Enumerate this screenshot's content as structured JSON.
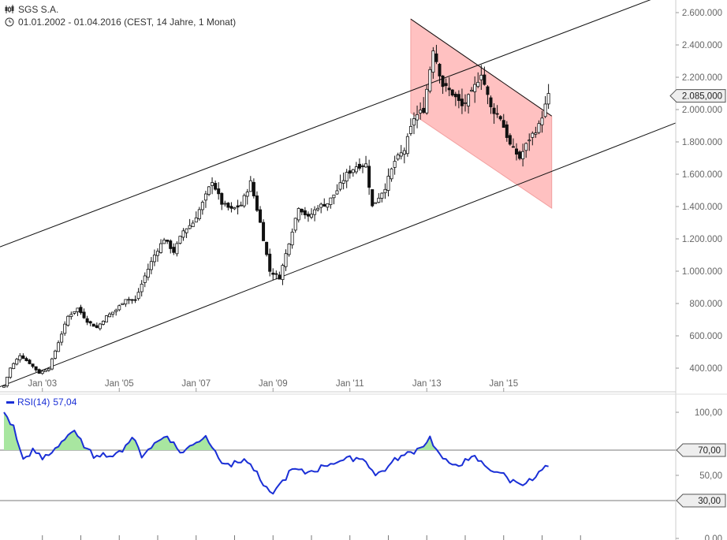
{
  "header": {
    "title": "SGS S.A.",
    "range": "01.01.2002 - 01.04.2016 (CEST, 14 Jahre, 1 Monat)",
    "chart_icon": "candlestick-icon",
    "clock_icon": "clock-icon"
  },
  "rsi_legend": {
    "label": "RSI(14)",
    "value": "57,04"
  },
  "colors": {
    "candle": "#111111",
    "channel_line": "#111111",
    "channel_fill": "#ffb6b6",
    "channel_edge": "#f2a0a0",
    "rsi_line": "#1a2fd6",
    "rsi_fill": "#a8e6a0",
    "guide": "#7a7a7a",
    "axis_text": "#666666"
  },
  "chart_data": [
    {
      "type": "candlestick",
      "title": "SGS S.A.",
      "interval": "1 Monat",
      "x_range": [
        "2002-01",
        "2016-03"
      ],
      "ylim": [
        250000,
        2650000
      ],
      "x_tick_labels": [
        "Jan '03",
        "Jan '05",
        "Jan '07",
        "Jan '09",
        "Jan '11",
        "Jan '13",
        "Jan '15"
      ],
      "y_tick_labels": [
        "400.000",
        "600.000",
        "800.000",
        "1.000.000",
        "1.200.000",
        "1.400.000",
        "1.600.000",
        "1.800.000",
        "2.000.000",
        "2.200.000",
        "2.400.000",
        "2.600.000"
      ],
      "y_ticks": [
        400000,
        600000,
        800000,
        1000000,
        1200000,
        1400000,
        1600000,
        1800000,
        2000000,
        2200000,
        2400000,
        2600000
      ],
      "last_price": 2085000,
      "last_price_label": "2.085,000",
      "close_anchors": [
        [
          "2002-01",
          290000
        ],
        [
          "2002-03",
          400000
        ],
        [
          "2002-06",
          480000
        ],
        [
          "2002-09",
          430000
        ],
        [
          "2002-12",
          370000
        ],
        [
          "2003-03",
          400000
        ],
        [
          "2003-06",
          560000
        ],
        [
          "2003-09",
          720000
        ],
        [
          "2003-12",
          770000
        ],
        [
          "2004-03",
          690000
        ],
        [
          "2004-06",
          650000
        ],
        [
          "2004-09",
          720000
        ],
        [
          "2004-12",
          760000
        ],
        [
          "2005-03",
          830000
        ],
        [
          "2005-06",
          820000
        ],
        [
          "2005-09",
          970000
        ],
        [
          "2005-12",
          1100000
        ],
        [
          "2006-03",
          1200000
        ],
        [
          "2006-06",
          1120000
        ],
        [
          "2006-09",
          1250000
        ],
        [
          "2006-12",
          1300000
        ],
        [
          "2007-03",
          1420000
        ],
        [
          "2007-06",
          1560000
        ],
        [
          "2007-09",
          1420000
        ],
        [
          "2007-12",
          1380000
        ],
        [
          "2008-03",
          1410000
        ],
        [
          "2008-06",
          1550000
        ],
        [
          "2008-09",
          1300000
        ],
        [
          "2008-12",
          1000000
        ],
        [
          "2009-03",
          960000
        ],
        [
          "2009-06",
          1180000
        ],
        [
          "2009-09",
          1400000
        ],
        [
          "2009-12",
          1330000
        ],
        [
          "2010-03",
          1400000
        ],
        [
          "2010-06",
          1420000
        ],
        [
          "2010-09",
          1500000
        ],
        [
          "2010-12",
          1600000
        ],
        [
          "2011-03",
          1650000
        ],
        [
          "2011-06",
          1660000
        ],
        [
          "2011-08",
          1400000
        ],
        [
          "2011-12",
          1520000
        ],
        [
          "2012-03",
          1680000
        ],
        [
          "2012-06",
          1750000
        ],
        [
          "2012-09",
          1950000
        ],
        [
          "2012-12",
          2000000
        ],
        [
          "2013-03",
          2380000
        ],
        [
          "2013-06",
          2150000
        ],
        [
          "2013-09",
          2100000
        ],
        [
          "2013-12",
          2020000
        ],
        [
          "2014-03",
          2100000
        ],
        [
          "2014-06",
          2230000
        ],
        [
          "2014-09",
          2010000
        ],
        [
          "2014-12",
          1950000
        ],
        [
          "2015-03",
          1780000
        ],
        [
          "2015-06",
          1700000
        ],
        [
          "2015-09",
          1820000
        ],
        [
          "2015-12",
          1900000
        ],
        [
          "2016-03",
          2085000
        ]
      ],
      "channel_upper_line": [
        [
          "2002-01",
          1160000
        ],
        [
          "2016-03",
          2440000
        ]
      ],
      "channel_lower_line": [
        [
          "2002-01",
          295000
        ],
        [
          "2016-03",
          1610000
        ]
      ],
      "falling_channel": {
        "start": "2012-08",
        "end": "2016-04",
        "upper": [
          2560000,
          1960000
        ],
        "lower": [
          1980000,
          1390000
        ]
      }
    },
    {
      "type": "line",
      "series": [
        {
          "name": "RSI(14)",
          "last": 57.04
        }
      ],
      "ylim": [
        0,
        100
      ],
      "y_ticks": [
        0,
        50,
        100
      ],
      "y_tick_labels": [
        "0,00",
        "50,00",
        "100,00"
      ],
      "guide_levels": [
        70,
        30
      ],
      "guide_labels": [
        "70,00",
        "30,00"
      ],
      "rsi_anchors": [
        [
          "2002-01",
          100
        ],
        [
          "2002-04",
          88
        ],
        [
          "2002-07",
          62
        ],
        [
          "2002-10",
          70
        ],
        [
          "2003-01",
          63
        ],
        [
          "2003-04",
          68
        ],
        [
          "2003-08",
          80
        ],
        [
          "2003-11",
          86
        ],
        [
          "2004-02",
          72
        ],
        [
          "2004-06",
          64
        ],
        [
          "2004-10",
          67
        ],
        [
          "2005-01",
          68
        ],
        [
          "2005-05",
          80
        ],
        [
          "2005-08",
          66
        ],
        [
          "2005-12",
          75
        ],
        [
          "2006-04",
          82
        ],
        [
          "2006-08",
          68
        ],
        [
          "2006-12",
          74
        ],
        [
          "2007-04",
          82
        ],
        [
          "2007-06",
          72
        ],
        [
          "2007-09",
          62
        ],
        [
          "2007-12",
          58
        ],
        [
          "2008-04",
          63
        ],
        [
          "2008-07",
          55
        ],
        [
          "2008-10",
          42
        ],
        [
          "2008-12",
          35
        ],
        [
          "2009-03",
          42
        ],
        [
          "2009-07",
          55
        ],
        [
          "2009-11",
          52
        ],
        [
          "2010-03",
          55
        ],
        [
          "2010-07",
          60
        ],
        [
          "2010-11",
          62
        ],
        [
          "2011-03",
          64
        ],
        [
          "2011-06",
          62
        ],
        [
          "2011-09",
          50
        ],
        [
          "2011-12",
          55
        ],
        [
          "2012-04",
          64
        ],
        [
          "2012-08",
          68
        ],
        [
          "2012-11",
          72
        ],
        [
          "2013-02",
          80
        ],
        [
          "2013-05",
          66
        ],
        [
          "2013-08",
          58
        ],
        [
          "2013-12",
          60
        ],
        [
          "2014-04",
          64
        ],
        [
          "2014-08",
          56
        ],
        [
          "2014-12",
          52
        ],
        [
          "2015-03",
          46
        ],
        [
          "2015-06",
          44
        ],
        [
          "2015-10",
          46
        ],
        [
          "2016-01",
          54
        ],
        [
          "2016-03",
          57.04
        ]
      ]
    }
  ]
}
